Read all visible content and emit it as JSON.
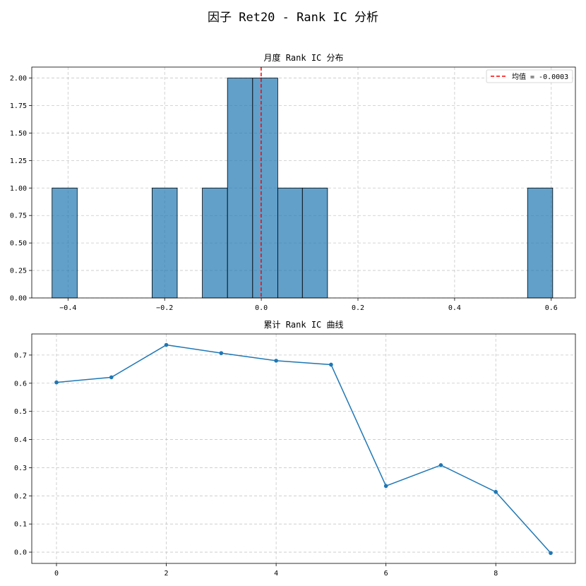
{
  "figure": {
    "suptitle": "因子 Ret20 - Rank IC 分析"
  },
  "chart_data": [
    {
      "type": "bar",
      "subtype": "histogram",
      "title": "月度 Rank IC 分布",
      "xlim": [
        -0.475,
        0.65
      ],
      "ylim": [
        0,
        2.1
      ],
      "xticks": [
        -0.4,
        -0.2,
        0.0,
        0.2,
        0.4,
        0.6
      ],
      "xtick_labels": [
        "−0.4",
        "−0.2",
        "0.0",
        "0.2",
        "0.4",
        "0.6"
      ],
      "yticks": [
        0,
        0.25,
        0.5,
        0.75,
        1.0,
        1.25,
        1.5,
        1.75,
        2.0
      ],
      "ytick_labels": [
        "0.00",
        "0.25",
        "0.50",
        "0.75",
        "1.00",
        "1.25",
        "1.50",
        "1.75",
        "2.00"
      ],
      "bins": [
        {
          "x0": -0.433,
          "x1": -0.381,
          "count": 1
        },
        {
          "x0": -0.226,
          "x1": -0.174,
          "count": 1
        },
        {
          "x0": -0.122,
          "x1": -0.07,
          "count": 1
        },
        {
          "x0": -0.07,
          "x1": -0.018,
          "count": 2
        },
        {
          "x0": -0.018,
          "x1": 0.034,
          "count": 2
        },
        {
          "x0": 0.034,
          "x1": 0.085,
          "count": 1
        },
        {
          "x0": 0.085,
          "x1": 0.137,
          "count": 1
        },
        {
          "x0": 0.551,
          "x1": 0.603,
          "count": 1
        }
      ],
      "mean_line": {
        "x": -0.0003,
        "label": "均值 = -0.0003",
        "color": "#ff0000"
      },
      "bar_color": "#1f77b4",
      "grid": true,
      "legend_position": "top-right"
    },
    {
      "type": "line",
      "title": "累计 Rank IC 曲线",
      "x": [
        0,
        1,
        2,
        3,
        4,
        5,
        6,
        7,
        8,
        9
      ],
      "values": [
        0.603,
        0.621,
        0.736,
        0.707,
        0.68,
        0.666,
        0.235,
        0.309,
        0.214,
        -0.003
      ],
      "xlim": [
        -0.45,
        9.45
      ],
      "ylim": [
        -0.04,
        0.775
      ],
      "xticks": [
        0,
        2,
        4,
        6,
        8
      ],
      "xtick_labels": [
        "0",
        "2",
        "4",
        "6",
        "8"
      ],
      "yticks": [
        0.0,
        0.1,
        0.2,
        0.3,
        0.4,
        0.5,
        0.6,
        0.7
      ],
      "ytick_labels": [
        "0.0",
        "0.1",
        "0.2",
        "0.3",
        "0.4",
        "0.5",
        "0.6",
        "0.7"
      ],
      "line_color": "#1f77b4",
      "marker": "circle",
      "grid": true
    }
  ]
}
